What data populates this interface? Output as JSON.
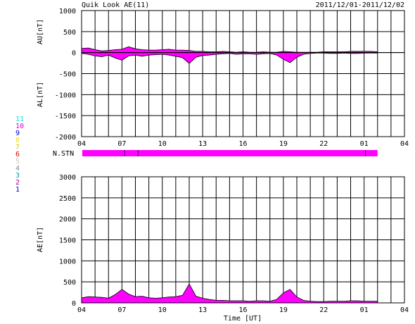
{
  "header": {
    "title": "Quik Look AE(11)",
    "date_range": "2011/12/01-2011/12/02"
  },
  "station_legend": [
    {
      "label": "11",
      "color": "#00e5e5"
    },
    {
      "label": "10",
      "color": "#e000e0"
    },
    {
      "label": "9",
      "color": "#0000c8"
    },
    {
      "label": "8",
      "color": "#e8e800"
    },
    {
      "label": "7",
      "color": "#e0c800"
    },
    {
      "label": "6",
      "color": "#e00000"
    },
    {
      "label": "5",
      "color": "#c8c8c8"
    },
    {
      "label": "4",
      "color": "#8c8c8c"
    },
    {
      "label": "3",
      "color": "#00a0a0"
    },
    {
      "label": "2",
      "color": "#a000a0"
    },
    {
      "label": "1",
      "color": "#0000c8"
    }
  ],
  "chart_data": [
    {
      "type": "area",
      "name": "AU/AL panel",
      "ylabel_upper": "AU[nT]",
      "ylabel_lower": "AL[nT]",
      "xlabel": "",
      "ylim": [
        -2000,
        1000
      ],
      "yticks": [
        1000,
        500,
        0,
        -500,
        -1000,
        -1500,
        -2000
      ],
      "xlim_hours": [
        4,
        28
      ],
      "xtick_labels": [
        "04",
        "07",
        "10",
        "13",
        "16",
        "19",
        "22",
        "01",
        "04"
      ],
      "fill_color": "#ff00ff",
      "x_hours": [
        4.0,
        4.5,
        5.0,
        5.5,
        6.0,
        6.5,
        7.0,
        7.5,
        8.0,
        8.5,
        9.0,
        9.5,
        10.0,
        10.5,
        11.0,
        11.5,
        12.0,
        12.5,
        13.0,
        13.5,
        14.0,
        14.5,
        15.0,
        15.5,
        16.0,
        16.5,
        17.0,
        17.5,
        18.0,
        18.5,
        19.0,
        19.5,
        20.0,
        20.5,
        21.0,
        21.5,
        22.0,
        22.5,
        23.0,
        23.5,
        24.0,
        24.5,
        25.0,
        25.5,
        26.0
      ],
      "series": [
        {
          "name": "AU",
          "values": [
            100,
            110,
            70,
            40,
            50,
            70,
            80,
            140,
            90,
            70,
            60,
            60,
            70,
            80,
            60,
            60,
            50,
            30,
            30,
            20,
            20,
            30,
            20,
            10,
            20,
            10,
            10,
            20,
            10,
            10,
            30,
            20,
            10,
            10,
            10,
            10,
            20,
            20,
            20,
            20,
            30,
            30,
            30,
            30,
            20
          ]
        },
        {
          "name": "AL",
          "values": [
            -20,
            -40,
            -80,
            -100,
            -60,
            -130,
            -180,
            -80,
            -60,
            -90,
            -60,
            -50,
            -40,
            -60,
            -90,
            -120,
            -260,
            -110,
            -70,
            -60,
            -40,
            -30,
            -20,
            -40,
            -30,
            -30,
            -40,
            -30,
            -20,
            -60,
            -160,
            -240,
            -110,
            -40,
            -20,
            -10,
            -10,
            -20,
            -20,
            -10,
            -20,
            -20,
            -10,
            -10,
            -10
          ]
        }
      ]
    },
    {
      "type": "bar",
      "name": "station coverage",
      "label": "N.STN",
      "segments": [
        {
          "start_hour": 4.0,
          "end_hour": 26.0,
          "color": "#ff00ff"
        }
      ],
      "tick_hours": [
        7.2,
        8.2,
        25.1
      ]
    },
    {
      "type": "area",
      "name": "AE panel",
      "ylabel": "AE[nT]",
      "xlabel": "Time [UT]",
      "ylim": [
        0,
        3000
      ],
      "yticks": [
        3000,
        2500,
        2000,
        1500,
        1000,
        500,
        0
      ],
      "xlim_hours": [
        4,
        28
      ],
      "xtick_labels": [
        "04",
        "07",
        "10",
        "13",
        "16",
        "19",
        "22",
        "01",
        "04"
      ],
      "fill_color": "#ff00ff",
      "x_hours": [
        4.0,
        4.5,
        5.0,
        5.5,
        6.0,
        6.5,
        7.0,
        7.5,
        8.0,
        8.5,
        9.0,
        9.5,
        10.0,
        10.5,
        11.0,
        11.5,
        12.0,
        12.5,
        13.0,
        13.5,
        14.0,
        14.5,
        15.0,
        15.5,
        16.0,
        16.5,
        17.0,
        17.5,
        18.0,
        18.5,
        19.0,
        19.5,
        20.0,
        20.5,
        21.0,
        21.5,
        22.0,
        22.5,
        23.0,
        23.5,
        24.0,
        24.5,
        25.0,
        25.5,
        26.0
      ],
      "values": [
        120,
        150,
        140,
        130,
        110,
        200,
        320,
        210,
        150,
        160,
        120,
        110,
        120,
        140,
        150,
        180,
        450,
        160,
        110,
        80,
        60,
        60,
        50,
        50,
        50,
        40,
        50,
        50,
        40,
        80,
        240,
        320,
        140,
        60,
        40,
        30,
        30,
        40,
        40,
        40,
        50,
        50,
        40,
        40,
        40
      ]
    }
  ]
}
